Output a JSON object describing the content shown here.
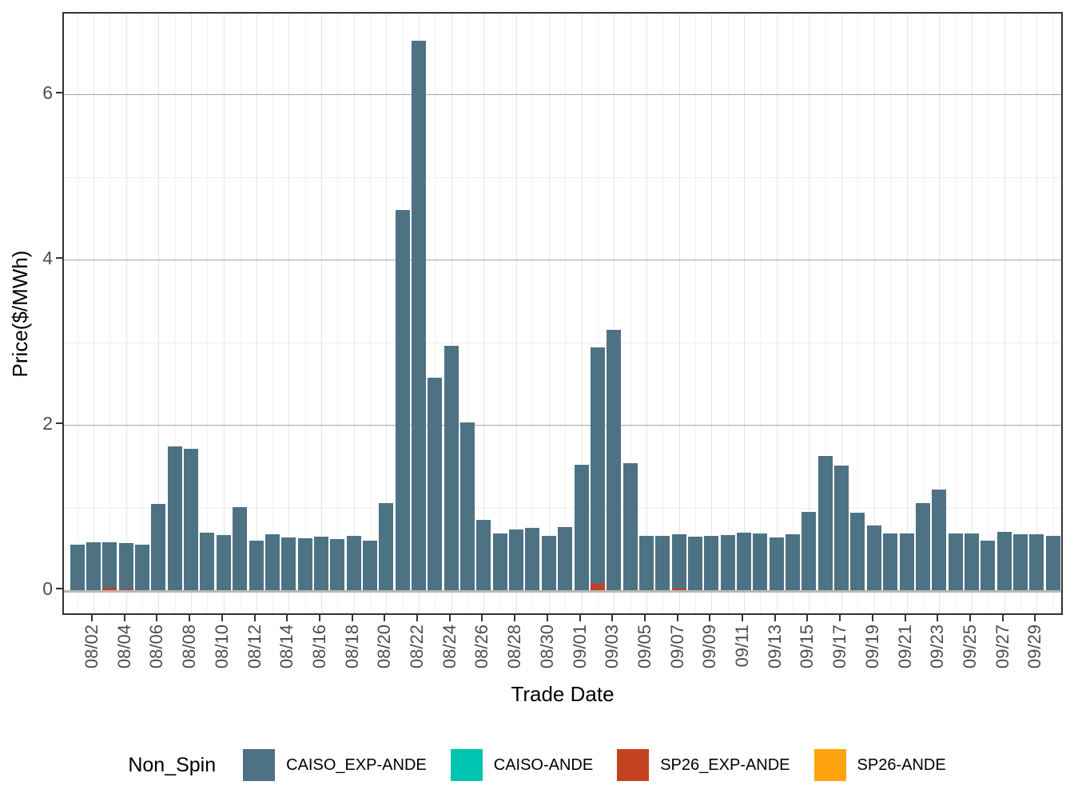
{
  "legend": {
    "title": "Non_Spin",
    "position": "bottom"
  },
  "axes": {
    "x_title": "Trade Date",
    "y_title": "Price($/MWh)",
    "y_tick_labels": [
      "0",
      "2",
      "4",
      "6"
    ],
    "tick_label_color": "#4d4d4d",
    "panel_border_color": "#333333"
  },
  "chart_data": {
    "type": "bar",
    "stacked": true,
    "title": "",
    "xlabel": "Trade Date",
    "ylabel": "Price($/MWh)",
    "ylim": [
      -0.33,
      6.98
    ],
    "yticks": [
      0,
      2,
      4,
      6
    ],
    "yticks_minor": [
      1,
      3,
      5
    ],
    "grid": "on",
    "legend_position": "bottom",
    "categories": [
      "08/01",
      "08/02",
      "08/03",
      "08/04",
      "08/05",
      "08/06",
      "08/07",
      "08/08",
      "08/09",
      "08/10",
      "08/11",
      "08/12",
      "08/13",
      "08/14",
      "08/15",
      "08/16",
      "08/17",
      "08/18",
      "08/19",
      "08/20",
      "08/21",
      "08/22",
      "08/23",
      "08/24",
      "08/25",
      "08/26",
      "08/27",
      "08/28",
      "08/29",
      "08/30",
      "08/31",
      "09/01",
      "09/02",
      "09/03",
      "09/04",
      "09/05",
      "09/06",
      "09/07",
      "09/08",
      "09/09",
      "09/10",
      "09/11",
      "09/12",
      "09/13",
      "09/14",
      "09/15",
      "09/16",
      "09/17",
      "09/18",
      "09/19",
      "09/20",
      "09/21",
      "09/22",
      "09/23",
      "09/24",
      "09/25",
      "09/26",
      "09/27",
      "09/28",
      "09/29",
      "09/30"
    ],
    "x_tick_labels": [
      "08/02",
      "08/04",
      "08/06",
      "08/08",
      "08/10",
      "08/12",
      "08/14",
      "08/16",
      "08/18",
      "08/20",
      "08/22",
      "08/24",
      "08/26",
      "08/28",
      "08/30",
      "09/01",
      "09/03",
      "09/05",
      "09/07",
      "09/09",
      "09/11",
      "09/13",
      "09/15",
      "09/17",
      "09/19",
      "09/21",
      "09/23",
      "09/25",
      "09/27",
      "09/29"
    ],
    "series": [
      {
        "name": "CAISO_EXP-ANDE",
        "color": "#4D7284",
        "values": [
          0.55,
          0.58,
          0.55,
          0.56,
          0.55,
          1.04,
          1.74,
          1.71,
          0.7,
          0.67,
          1.01,
          0.6,
          0.68,
          0.64,
          0.63,
          0.65,
          0.62,
          0.66,
          0.6,
          1.05,
          4.6,
          6.65,
          2.57,
          2.96,
          2.03,
          0.85,
          0.69,
          0.73,
          0.75,
          0.66,
          0.76,
          1.52,
          2.86,
          3.15,
          1.54,
          0.66,
          0.66,
          0.66,
          0.65,
          0.66,
          0.67,
          0.7,
          0.69,
          0.64,
          0.68,
          0.95,
          1.62,
          1.51,
          0.94,
          0.78,
          0.69,
          0.69,
          1.05,
          1.22,
          0.69,
          0.69,
          0.6,
          0.71,
          0.68,
          0.68,
          0.66
        ]
      },
      {
        "name": "CAISO-ANDE",
        "color": "#00C5B0",
        "values": [
          0,
          0,
          0,
          0,
          0,
          0,
          0,
          0,
          0,
          0,
          0,
          0,
          0,
          0,
          0,
          0,
          0,
          0,
          0,
          0,
          0,
          0,
          0,
          0,
          0,
          0,
          0,
          0,
          0,
          0,
          0,
          0,
          0,
          0,
          0,
          0,
          0,
          0,
          0,
          0,
          0,
          0,
          0,
          0,
          0,
          0,
          0,
          0,
          0,
          0,
          0,
          0,
          0,
          0,
          0,
          0,
          0,
          0,
          0,
          0,
          0
        ]
      },
      {
        "name": "SP26_EXP-ANDE",
        "color": "#C4411F",
        "values": [
          0,
          0,
          0.03,
          0.015,
          0,
          0,
          0,
          0,
          0,
          0,
          0,
          0,
          0,
          0,
          0,
          0,
          0,
          0,
          0,
          0,
          0,
          0,
          0,
          0,
          0,
          0,
          0,
          0,
          0,
          0,
          0,
          0,
          0.08,
          0,
          0,
          0,
          0,
          0.02,
          0,
          0,
          0,
          0,
          0,
          0,
          0,
          0,
          0,
          0,
          0,
          0,
          0,
          0,
          0,
          0,
          0,
          0,
          0,
          0,
          0,
          0,
          0
        ]
      },
      {
        "name": "SP26-ANDE",
        "color": "#FFA40E",
        "values": [
          0,
          0,
          0,
          0,
          0,
          0,
          0,
          0,
          0,
          0,
          0,
          0,
          0,
          0,
          0,
          0,
          0,
          0,
          0,
          0,
          0,
          0,
          0,
          0,
          0,
          0,
          0,
          0,
          0,
          0,
          0,
          0,
          0,
          0,
          0,
          0,
          0,
          0,
          0,
          0,
          0,
          0,
          0,
          0,
          0,
          0,
          0,
          0,
          0,
          0,
          0,
          0,
          0,
          0,
          0,
          0,
          0,
          0,
          0,
          0,
          0
        ]
      }
    ]
  }
}
